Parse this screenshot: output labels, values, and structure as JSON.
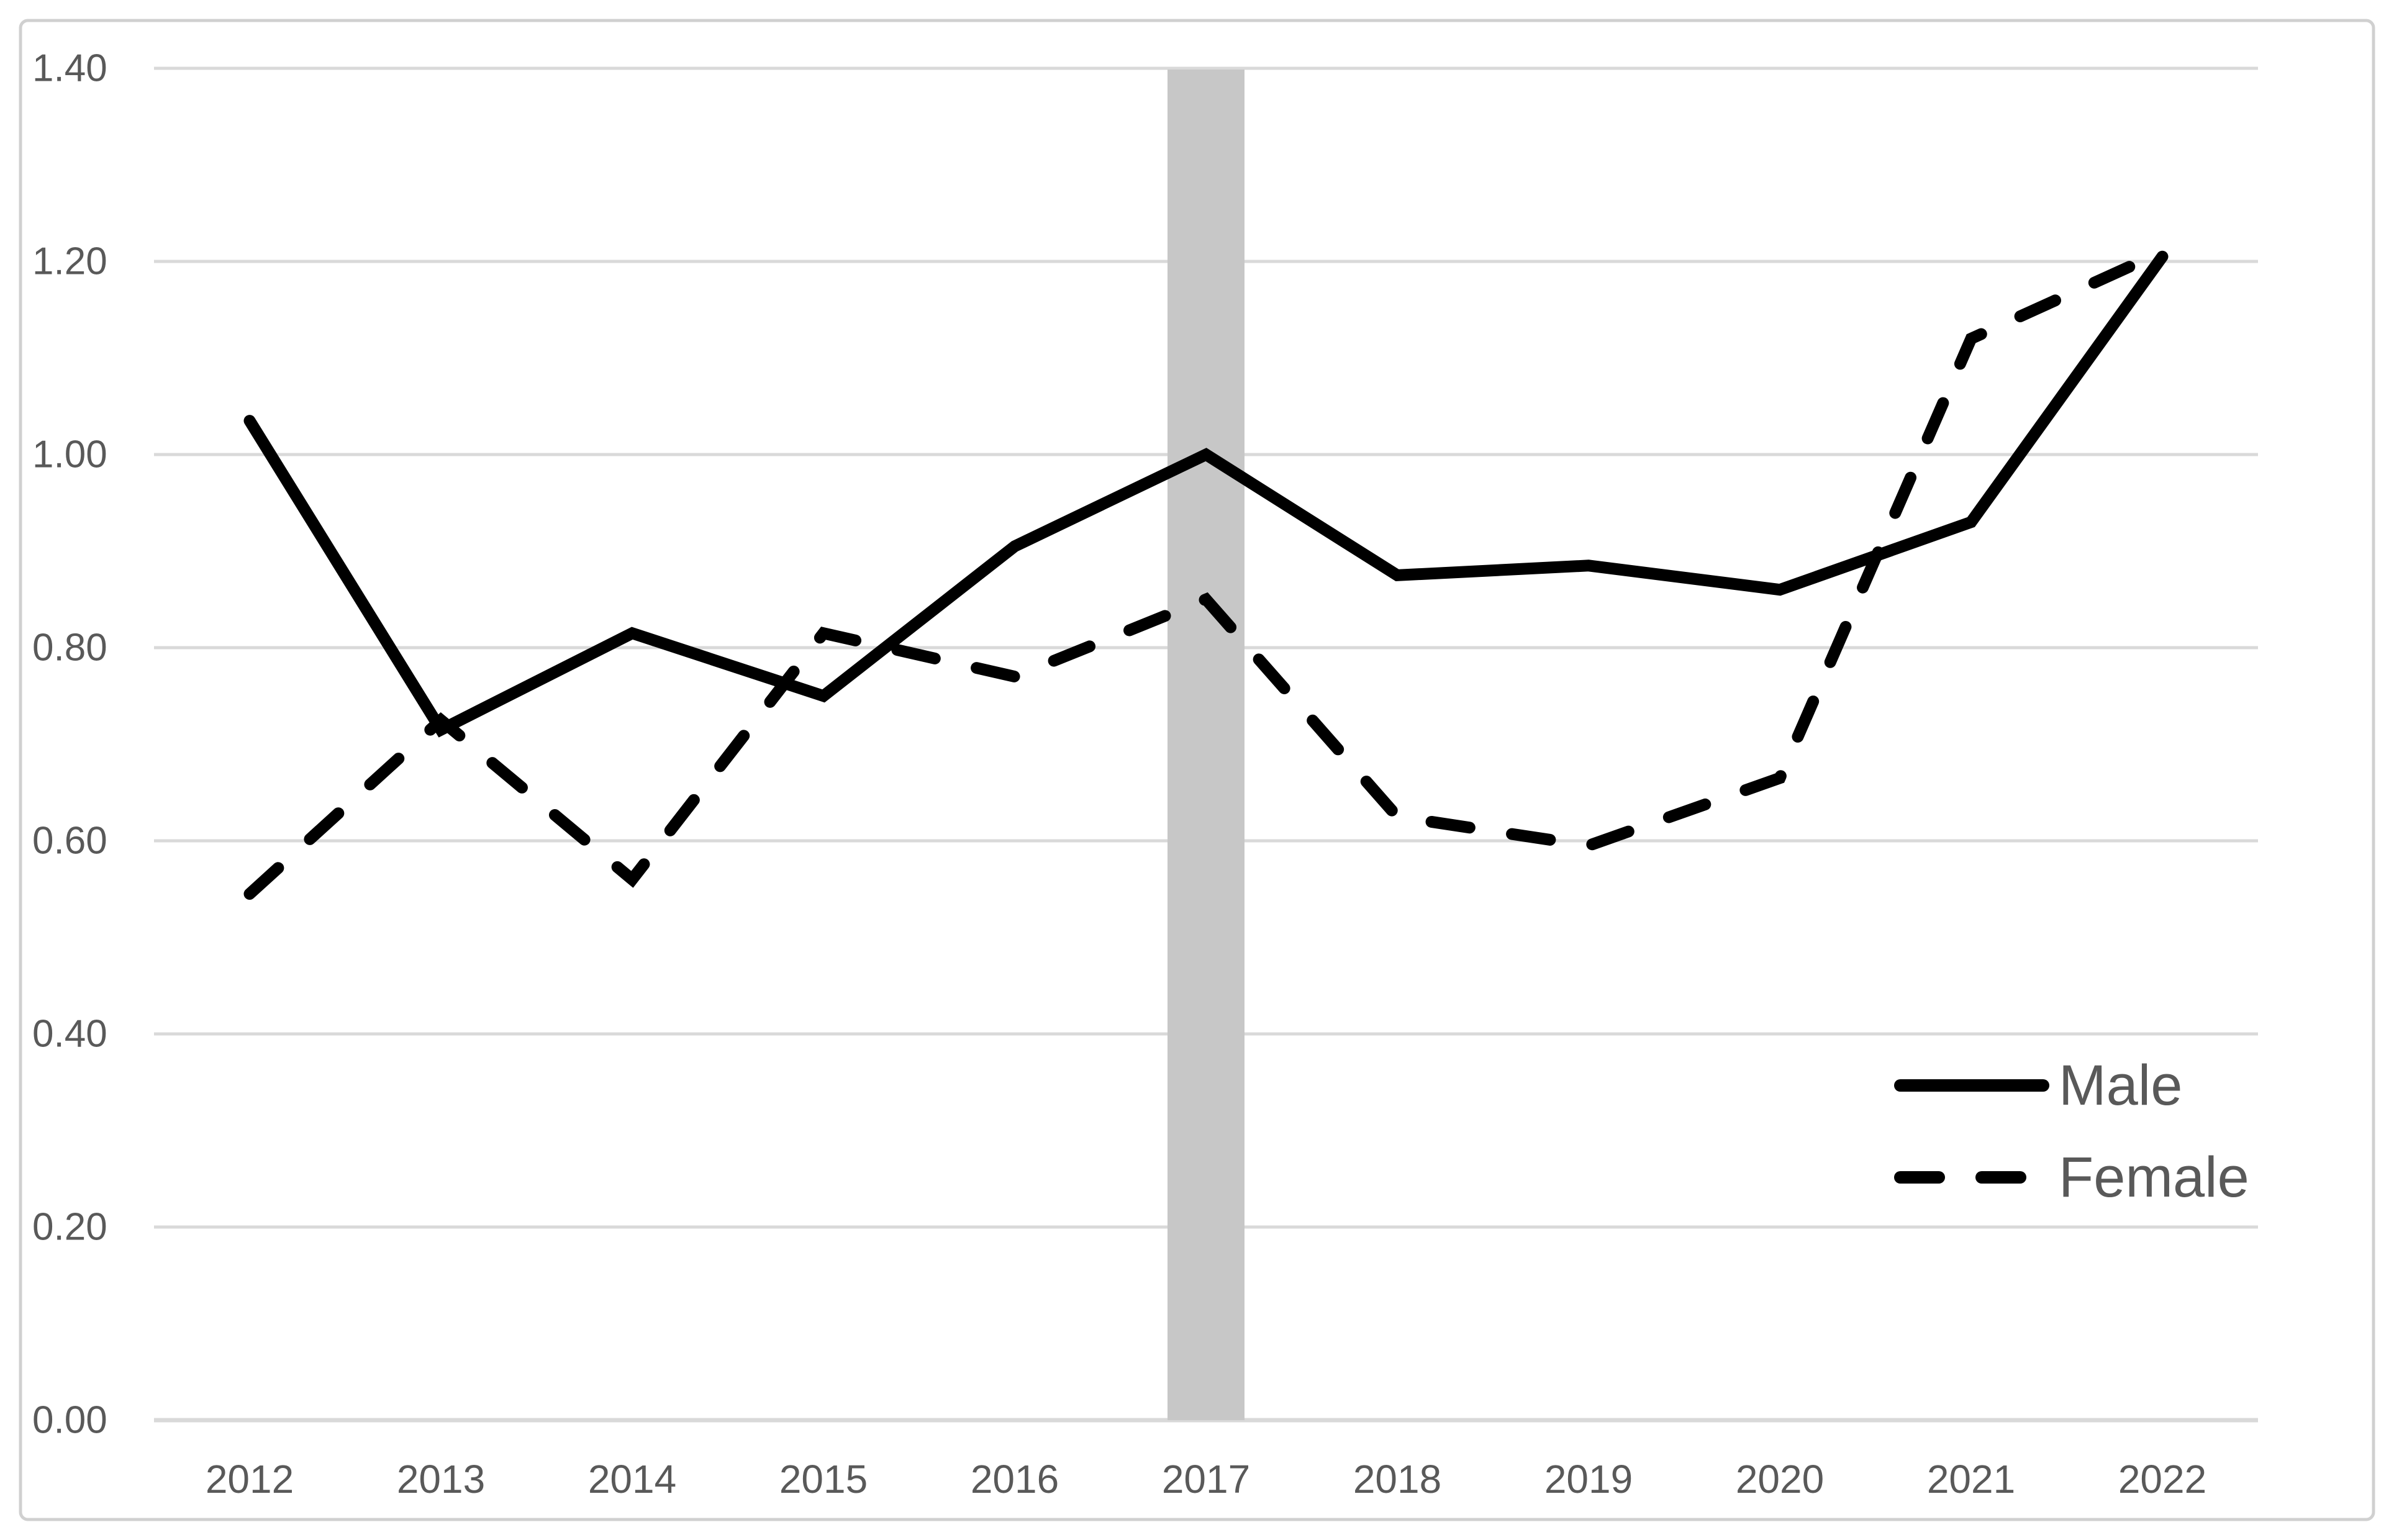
{
  "figure": {
    "background": "#ffffff",
    "border_color": "#d0d0d0"
  },
  "chart_data": {
    "type": "line",
    "title": "",
    "xlabel": "",
    "ylabel": "",
    "categories": [
      "2012",
      "2013",
      "2014",
      "2015",
      "2016",
      "2017",
      "2018",
      "2019",
      "2020",
      "2021",
      "2022"
    ],
    "series": [
      {
        "name": "Male",
        "style": "solid",
        "color": "#000000",
        "values": [
          1.035,
          0.715,
          0.815,
          0.75,
          0.905,
          1.0,
          0.875,
          0.885,
          0.86,
          0.93,
          1.205
        ]
      },
      {
        "name": "Female",
        "style": "dashed",
        "color": "#000000",
        "values": [
          0.545,
          0.725,
          0.56,
          0.815,
          0.77,
          0.85,
          0.625,
          0.595,
          0.665,
          1.12,
          1.21
        ]
      }
    ],
    "ylim": [
      0,
      1.4
    ],
    "ytick_step": 0.2,
    "ytick_labels": [
      "0.00",
      "0.20",
      "0.40",
      "0.60",
      "0.80",
      "1.00",
      "1.20",
      "1.40"
    ],
    "grid": "horizontal",
    "gridline_color": "#d9d9d9",
    "axis_text_color": "#595959",
    "highlight_band": {
      "category": "2017",
      "color": "#c7c7c7"
    },
    "legend": {
      "position": "inside-bottom-right",
      "entries": [
        "Male",
        "Female"
      ]
    }
  }
}
